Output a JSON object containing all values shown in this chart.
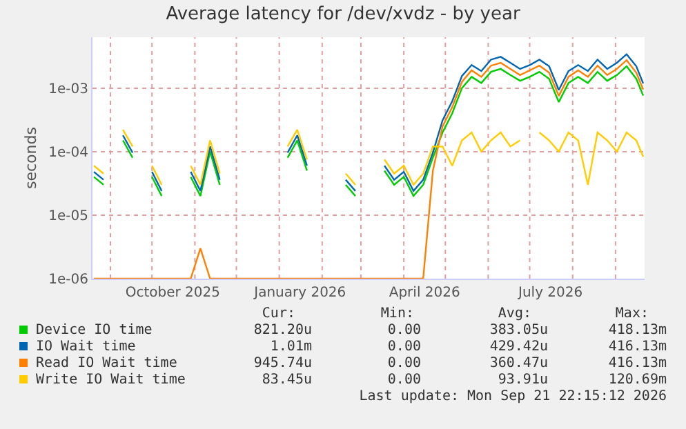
{
  "chart_data": {
    "type": "line",
    "title": "Average latency for /dev/xvdz - by year",
    "ylabel": "seconds",
    "log": "y",
    "grid": true,
    "legend": "bottom",
    "marker": "none",
    "line_style": "solid",
    "x": [
      "2025-08-20",
      "2025-08-27",
      "2025-09-03",
      "2025-09-10",
      "2025-09-17",
      "2025-09-24",
      "2025-10-01",
      "2025-10-08",
      "2025-10-15",
      "2025-10-22",
      "2025-10-29",
      "2025-11-05",
      "2025-11-12",
      "2025-11-19",
      "2025-11-26",
      "2025-12-03",
      "2025-12-10",
      "2025-12-17",
      "2025-12-24",
      "2025-12-31",
      "2026-01-07",
      "2026-01-14",
      "2026-01-21",
      "2026-01-28",
      "2026-02-04",
      "2026-02-11",
      "2026-02-18",
      "2026-02-25",
      "2026-03-04",
      "2026-03-11",
      "2026-03-18",
      "2026-03-25",
      "2026-04-01",
      "2026-04-08",
      "2026-04-15",
      "2026-04-22",
      "2026-04-29",
      "2026-05-06",
      "2026-05-13",
      "2026-05-20",
      "2026-05-27",
      "2026-06-03",
      "2026-06-10",
      "2026-06-17",
      "2026-06-24",
      "2026-07-01",
      "2026-07-08",
      "2026-07-15",
      "2026-07-22",
      "2026-07-29",
      "2026-08-05",
      "2026-08-12",
      "2026-08-19",
      "2026-08-26",
      "2026-09-02",
      "2026-09-09",
      "2026-09-16",
      "2026-09-21"
    ],
    "xlim": [
      "2025-08-19",
      "2026-09-22"
    ],
    "xticks": [
      {
        "value": "2025-09-01",
        "label": null
      },
      {
        "value": "2025-10-01",
        "label": null
      },
      {
        "value": "2025-10-16",
        "label": "October 2025"
      },
      {
        "value": "2025-11-01",
        "label": null
      },
      {
        "value": "2025-12-01",
        "label": null
      },
      {
        "value": "2026-01-01",
        "label": null
      },
      {
        "value": "2026-01-16",
        "label": "January 2026"
      },
      {
        "value": "2026-02-01",
        "label": null
      },
      {
        "value": "2026-03-01",
        "label": null
      },
      {
        "value": "2026-04-01",
        "label": null
      },
      {
        "value": "2026-04-16",
        "label": "April 2026"
      },
      {
        "value": "2026-05-01",
        "label": null
      },
      {
        "value": "2026-06-01",
        "label": null
      },
      {
        "value": "2026-07-01",
        "label": null
      },
      {
        "value": "2026-07-16",
        "label": "July 2026"
      },
      {
        "value": "2026-08-01",
        "label": null
      },
      {
        "value": "2026-09-01",
        "label": null
      }
    ],
    "ylim": [
      1e-06,
      0.0063
    ],
    "yticks": [
      {
        "value": 1e-06,
        "label": "1e-06"
      },
      {
        "value": 1e-05,
        "label": "1e-05"
      },
      {
        "value": 0.0001,
        "label": "1e-04"
      },
      {
        "value": 0.001,
        "label": "1e-03"
      }
    ],
    "series": [
      {
        "name": "Device IO time",
        "color": "#00cc00",
        "values": [
          4e-05,
          3e-05,
          null,
          0.00015,
          8e-05,
          null,
          4e-05,
          2e-05,
          null,
          null,
          4e-05,
          2e-05,
          0.0001,
          3e-05,
          null,
          null,
          null,
          null,
          null,
          null,
          8e-05,
          0.00015,
          5e-05,
          null,
          null,
          null,
          3e-05,
          2e-05,
          null,
          null,
          5e-05,
          3e-05,
          4e-05,
          2e-05,
          3e-05,
          8e-05,
          0.0002,
          0.0004,
          0.001,
          0.0015,
          0.0012,
          0.0018,
          0.002,
          0.0016,
          0.0013,
          0.0015,
          0.0018,
          0.0014,
          0.0006,
          0.0012,
          0.0015,
          0.0012,
          0.0018,
          0.0013,
          0.0016,
          0.0022,
          0.0014,
          0.00076
        ]
      },
      {
        "name": "IO Wait time",
        "color": "#0066b3",
        "values": [
          4.8e-05,
          3.6e-05,
          null,
          0.00018,
          9.6e-05,
          null,
          4.8e-05,
          2.4e-05,
          null,
          null,
          4.8e-05,
          2.4e-05,
          0.00012,
          3.6e-05,
          null,
          null,
          null,
          null,
          null,
          null,
          9.6e-05,
          0.00018,
          6e-05,
          null,
          null,
          null,
          3.6e-05,
          2.4e-05,
          null,
          null,
          6e-05,
          3.6e-05,
          4.8e-05,
          2.4e-05,
          3.6e-05,
          9.6e-05,
          0.00031,
          0.00062,
          0.00155,
          0.0023,
          0.00185,
          0.0028,
          0.0031,
          0.0025,
          0.002,
          0.0023,
          0.0028,
          0.0022,
          0.00093,
          0.00185,
          0.0023,
          0.00185,
          0.0028,
          0.002,
          0.0025,
          0.0034,
          0.0022,
          0.00118
        ]
      },
      {
        "name": "Read IO Wait time",
        "color": "#ff8000",
        "values": [
          1e-06,
          1e-06,
          1e-06,
          1e-06,
          1e-06,
          1e-06,
          1e-06,
          1e-06,
          1e-06,
          1e-06,
          1e-06,
          3e-06,
          1e-06,
          1e-06,
          1e-06,
          1e-06,
          1e-06,
          1e-06,
          1e-06,
          1e-06,
          1e-06,
          1e-06,
          1e-06,
          1e-06,
          1e-06,
          1e-06,
          1e-06,
          1e-06,
          1e-06,
          1e-06,
          1e-06,
          1e-06,
          1e-06,
          1e-06,
          1e-06,
          5e-05,
          0.00025,
          0.0005,
          0.00125,
          0.0019,
          0.0015,
          0.00225,
          0.0025,
          0.002,
          0.0016,
          0.0019,
          0.00225,
          0.00175,
          0.00075,
          0.0015,
          0.0019,
          0.0015,
          0.00225,
          0.0016,
          0.002,
          0.00275,
          0.00175,
          0.00095
        ]
      },
      {
        "name": "Write IO Wait time",
        "color": "#ffcc00",
        "values": [
          6e-05,
          4.5e-05,
          null,
          0.00022,
          0.00012,
          null,
          6e-05,
          3e-05,
          null,
          null,
          6e-05,
          3e-05,
          0.00015,
          4.5e-05,
          null,
          null,
          null,
          null,
          null,
          null,
          0.00012,
          0.00022,
          7.5e-05,
          null,
          null,
          null,
          4.5e-05,
          3e-05,
          null,
          null,
          7.5e-05,
          4.5e-05,
          6e-05,
          3e-05,
          4.5e-05,
          0.00012,
          0.00012,
          6e-05,
          0.00015,
          0.0002,
          0.0001,
          0.00015,
          0.0002,
          0.00012,
          0.00015,
          null,
          0.0002,
          0.00015,
          0.0001,
          0.0002,
          0.00015,
          3e-05,
          0.0002,
          0.00015,
          0.0001,
          0.0002,
          0.00015,
          8.3e-05
        ]
      }
    ],
    "annotations": [
      "Cur:",
      "Min:",
      "Avg:",
      "Max:",
      "821.20u",
      "0.00",
      "383.05u",
      "418.13m",
      "1.01m",
      "0.00",
      "429.42u",
      "416.13m",
      "945.74u",
      "0.00",
      "360.47u",
      "416.13m",
      "83.45u",
      "0.00",
      "93.91u",
      "120.69m",
      "Last update: Mon Sep 21 22:15:12 2026"
    ]
  }
}
